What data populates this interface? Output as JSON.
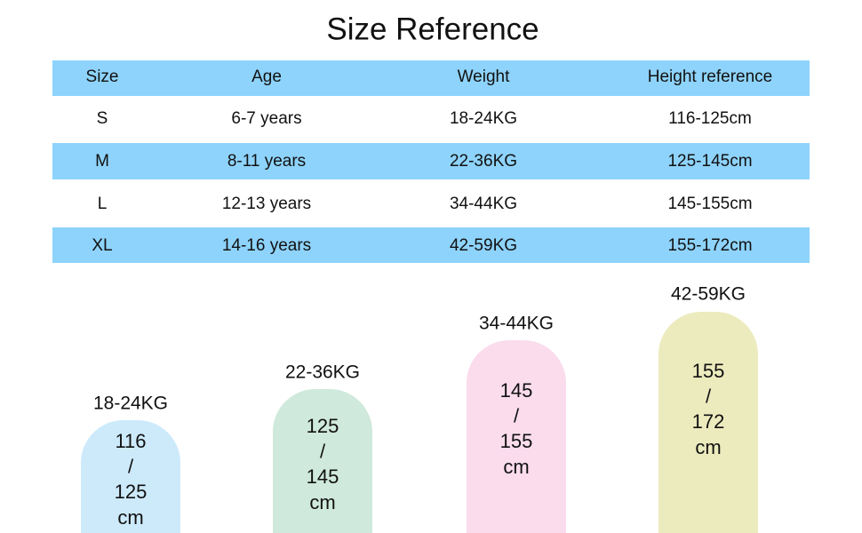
{
  "header": {
    "title": "Size Reference"
  },
  "table": {
    "columns": [
      "Size",
      "Age",
      "Weight",
      "Height reference"
    ],
    "rows": [
      [
        "S",
        "6-7 years",
        "18-24KG",
        "116-125cm"
      ],
      [
        "M",
        "8-11 years",
        "22-36KG",
        "125-145cm"
      ],
      [
        "L",
        "12-13 years",
        "34-44KG",
        "145-155cm"
      ],
      [
        "XL",
        "14-16 years",
        "42-59KG",
        "155-172cm"
      ]
    ]
  },
  "size_bars": [
    {
      "weight": "18-24KG",
      "lines": [
        "116",
        "/",
        "125",
        "cm"
      ]
    },
    {
      "weight": "22-36KG",
      "lines": [
        "125",
        "/",
        "145",
        "cm"
      ]
    },
    {
      "weight": "34-44KG",
      "lines": [
        "145",
        "/",
        "155",
        "cm"
      ]
    },
    {
      "weight": "42-59KG",
      "lines": [
        "155",
        "/",
        "172",
        "cm"
      ]
    }
  ]
}
